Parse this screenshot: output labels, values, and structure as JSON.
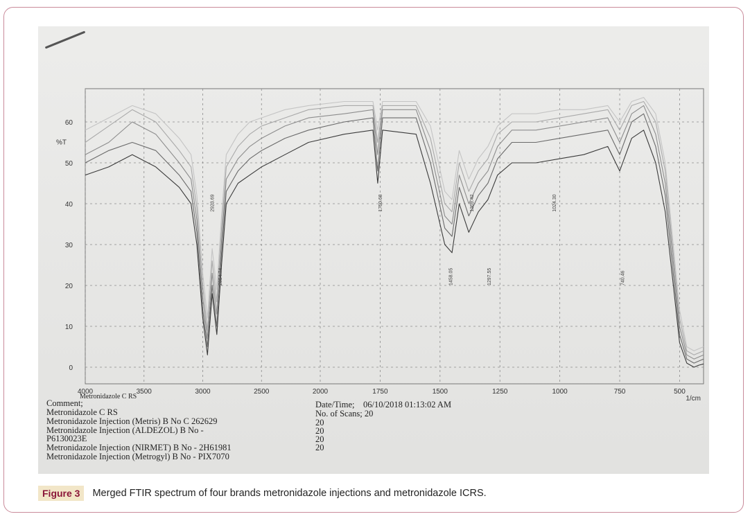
{
  "figure": {
    "label": "Figure 3",
    "caption": "Merged FTIR spectrum of four brands metronidazole injections and metronidazole ICRS."
  },
  "chart_meta": {
    "comment_label": "Comment;",
    "comment_lines": [
      "Metronidazole C RS",
      "Metronidazole Injection (Metris) B No C 262629",
      "Metronidazole Injection (ALDEZOL) B No -",
      "P6130023E",
      "Metronidazole Injection (NIRMET) B No - 2H61981",
      "Metronidazole Injection (Metrogyl) B No - PIX7070"
    ],
    "datetime_line": "Date/Time;    06/10/2018 01:13:02 AM",
    "scans_line": "No. of Scans; 20",
    "scan_values": [
      "20",
      "20",
      "20",
      "20"
    ],
    "sample_name": "Metronidazole C RS"
  },
  "chart_data": {
    "type": "line",
    "xlabel": "1/cm",
    "ylabel": "%T",
    "xlim": [
      4000,
      400
    ],
    "ylim": [
      -3,
      68
    ],
    "x_ticks": [
      4000,
      3500,
      3000,
      2500,
      2000,
      1750,
      1500,
      1250,
      1000,
      750,
      500
    ],
    "y_ticks": [
      0,
      10,
      20,
      30,
      40,
      50,
      60
    ],
    "grid": true,
    "series": [
      {
        "color": "#3a3a3a",
        "points": [
          [
            4000,
            47
          ],
          [
            3800,
            49
          ],
          [
            3600,
            52
          ],
          [
            3400,
            49
          ],
          [
            3200,
            44
          ],
          [
            3100,
            40
          ],
          [
            3050,
            30
          ],
          [
            3000,
            12
          ],
          [
            2960,
            3
          ],
          [
            2920,
            18
          ],
          [
            2880,
            8
          ],
          [
            2840,
            25
          ],
          [
            2800,
            40
          ],
          [
            2700,
            45
          ],
          [
            2600,
            47
          ],
          [
            2500,
            49
          ],
          [
            2300,
            52
          ],
          [
            2100,
            55
          ],
          [
            1900,
            57
          ],
          [
            1780,
            58
          ],
          [
            1760,
            45
          ],
          [
            1740,
            58
          ],
          [
            1600,
            57
          ],
          [
            1540,
            45
          ],
          [
            1480,
            30
          ],
          [
            1450,
            28
          ],
          [
            1420,
            40
          ],
          [
            1380,
            33
          ],
          [
            1340,
            38
          ],
          [
            1300,
            41
          ],
          [
            1260,
            47
          ],
          [
            1200,
            50
          ],
          [
            1100,
            50
          ],
          [
            1000,
            51
          ],
          [
            900,
            52
          ],
          [
            800,
            54
          ],
          [
            750,
            48
          ],
          [
            700,
            56
          ],
          [
            650,
            58
          ],
          [
            600,
            50
          ],
          [
            560,
            38
          ],
          [
            530,
            22
          ],
          [
            500,
            6
          ],
          [
            470,
            1
          ],
          [
            440,
            0
          ],
          [
            420,
            0.5
          ],
          [
            400,
            0.8
          ]
        ]
      },
      {
        "color": "#6a6a6a",
        "points": [
          [
            4000,
            50
          ],
          [
            3800,
            53
          ],
          [
            3600,
            55
          ],
          [
            3400,
            53
          ],
          [
            3200,
            47
          ],
          [
            3100,
            43
          ],
          [
            3050,
            33
          ],
          [
            3000,
            14
          ],
          [
            2960,
            5
          ],
          [
            2920,
            20
          ],
          [
            2880,
            10
          ],
          [
            2840,
            28
          ],
          [
            2800,
            43
          ],
          [
            2700,
            48
          ],
          [
            2600,
            51
          ],
          [
            2500,
            53
          ],
          [
            2300,
            56
          ],
          [
            2100,
            58
          ],
          [
            1900,
            60
          ],
          [
            1780,
            61
          ],
          [
            1760,
            48
          ],
          [
            1740,
            61
          ],
          [
            1600,
            61
          ],
          [
            1540,
            50
          ],
          [
            1480,
            34
          ],
          [
            1450,
            32
          ],
          [
            1420,
            44
          ],
          [
            1380,
            37
          ],
          [
            1340,
            42
          ],
          [
            1300,
            45
          ],
          [
            1260,
            51
          ],
          [
            1200,
            55
          ],
          [
            1100,
            55
          ],
          [
            1000,
            56
          ],
          [
            900,
            57
          ],
          [
            800,
            58
          ],
          [
            750,
            52
          ],
          [
            700,
            60
          ],
          [
            650,
            62
          ],
          [
            600,
            54
          ],
          [
            560,
            42
          ],
          [
            530,
            25
          ],
          [
            500,
            8
          ],
          [
            470,
            2
          ],
          [
            440,
            1
          ],
          [
            420,
            1.5
          ],
          [
            400,
            2
          ]
        ]
      },
      {
        "color": "#8c8c8c",
        "points": [
          [
            4000,
            52
          ],
          [
            3800,
            55
          ],
          [
            3600,
            60
          ],
          [
            3400,
            57
          ],
          [
            3200,
            50
          ],
          [
            3100,
            46
          ],
          [
            3050,
            36
          ],
          [
            3000,
            17
          ],
          [
            2960,
            7
          ],
          [
            2920,
            23
          ],
          [
            2880,
            13
          ],
          [
            2840,
            31
          ],
          [
            2800,
            46
          ],
          [
            2700,
            51
          ],
          [
            2600,
            54
          ],
          [
            2500,
            56
          ],
          [
            2300,
            59
          ],
          [
            2100,
            61
          ],
          [
            1900,
            62
          ],
          [
            1780,
            63
          ],
          [
            1760,
            52
          ],
          [
            1740,
            63
          ],
          [
            1600,
            63
          ],
          [
            1540,
            53
          ],
          [
            1480,
            37
          ],
          [
            1450,
            35
          ],
          [
            1420,
            47
          ],
          [
            1380,
            40
          ],
          [
            1340,
            45
          ],
          [
            1300,
            48
          ],
          [
            1260,
            54
          ],
          [
            1200,
            58
          ],
          [
            1100,
            58
          ],
          [
            1000,
            59
          ],
          [
            900,
            60
          ],
          [
            800,
            61
          ],
          [
            750,
            55
          ],
          [
            700,
            62
          ],
          [
            650,
            64
          ],
          [
            600,
            57
          ],
          [
            560,
            45
          ],
          [
            530,
            28
          ],
          [
            500,
            10
          ],
          [
            470,
            3
          ],
          [
            440,
            2
          ],
          [
            420,
            2.5
          ],
          [
            400,
            3
          ]
        ]
      },
      {
        "color": "#a9a9a9",
        "points": [
          [
            4000,
            55
          ],
          [
            3800,
            59
          ],
          [
            3600,
            63
          ],
          [
            3400,
            60
          ],
          [
            3200,
            53
          ],
          [
            3100,
            49
          ],
          [
            3050,
            39
          ],
          [
            3000,
            20
          ],
          [
            2960,
            9
          ],
          [
            2920,
            26
          ],
          [
            2880,
            16
          ],
          [
            2840,
            34
          ],
          [
            2800,
            49
          ],
          [
            2700,
            54
          ],
          [
            2600,
            57
          ],
          [
            2500,
            59
          ],
          [
            2300,
            61
          ],
          [
            2100,
            63
          ],
          [
            1900,
            64
          ],
          [
            1780,
            64
          ],
          [
            1760,
            55
          ],
          [
            1740,
            64
          ],
          [
            1600,
            64
          ],
          [
            1540,
            56
          ],
          [
            1480,
            40
          ],
          [
            1450,
            38
          ],
          [
            1420,
            50
          ],
          [
            1380,
            43
          ],
          [
            1340,
            48
          ],
          [
            1300,
            51
          ],
          [
            1260,
            57
          ],
          [
            1200,
            60
          ],
          [
            1100,
            60
          ],
          [
            1000,
            61
          ],
          [
            900,
            62
          ],
          [
            800,
            63
          ],
          [
            750,
            58
          ],
          [
            700,
            64
          ],
          [
            650,
            65
          ],
          [
            600,
            60
          ],
          [
            560,
            48
          ],
          [
            530,
            30
          ],
          [
            500,
            12
          ],
          [
            470,
            4
          ],
          [
            440,
            3
          ],
          [
            420,
            3.5
          ],
          [
            400,
            4
          ]
        ]
      },
      {
        "color": "#c4c4c4",
        "points": [
          [
            4000,
            58
          ],
          [
            3800,
            61
          ],
          [
            3600,
            64
          ],
          [
            3400,
            62
          ],
          [
            3200,
            56
          ],
          [
            3100,
            52
          ],
          [
            3050,
            42
          ],
          [
            3000,
            23
          ],
          [
            2960,
            12
          ],
          [
            2920,
            29
          ],
          [
            2880,
            19
          ],
          [
            2840,
            37
          ],
          [
            2800,
            52
          ],
          [
            2700,
            57
          ],
          [
            2600,
            60
          ],
          [
            2500,
            61
          ],
          [
            2300,
            63
          ],
          [
            2100,
            64
          ],
          [
            1900,
            65
          ],
          [
            1780,
            65
          ],
          [
            1760,
            58
          ],
          [
            1740,
            65
          ],
          [
            1600,
            65
          ],
          [
            1540,
            59
          ],
          [
            1480,
            43
          ],
          [
            1450,
            41
          ],
          [
            1420,
            53
          ],
          [
            1380,
            46
          ],
          [
            1340,
            51
          ],
          [
            1300,
            54
          ],
          [
            1260,
            59
          ],
          [
            1200,
            62
          ],
          [
            1100,
            62
          ],
          [
            1000,
            63
          ],
          [
            900,
            63
          ],
          [
            800,
            64
          ],
          [
            750,
            60
          ],
          [
            700,
            65
          ],
          [
            650,
            66
          ],
          [
            600,
            62
          ],
          [
            560,
            50
          ],
          [
            530,
            32
          ],
          [
            500,
            14
          ],
          [
            470,
            5
          ],
          [
            440,
            4
          ],
          [
            420,
            4.5
          ],
          [
            400,
            5
          ]
        ]
      }
    ],
    "peak_labels": [
      "1750.68",
      "1458.05",
      "1369.42",
      "1297.55",
      "2923.69",
      "2854.74",
      "1024.30",
      "740.46"
    ]
  }
}
